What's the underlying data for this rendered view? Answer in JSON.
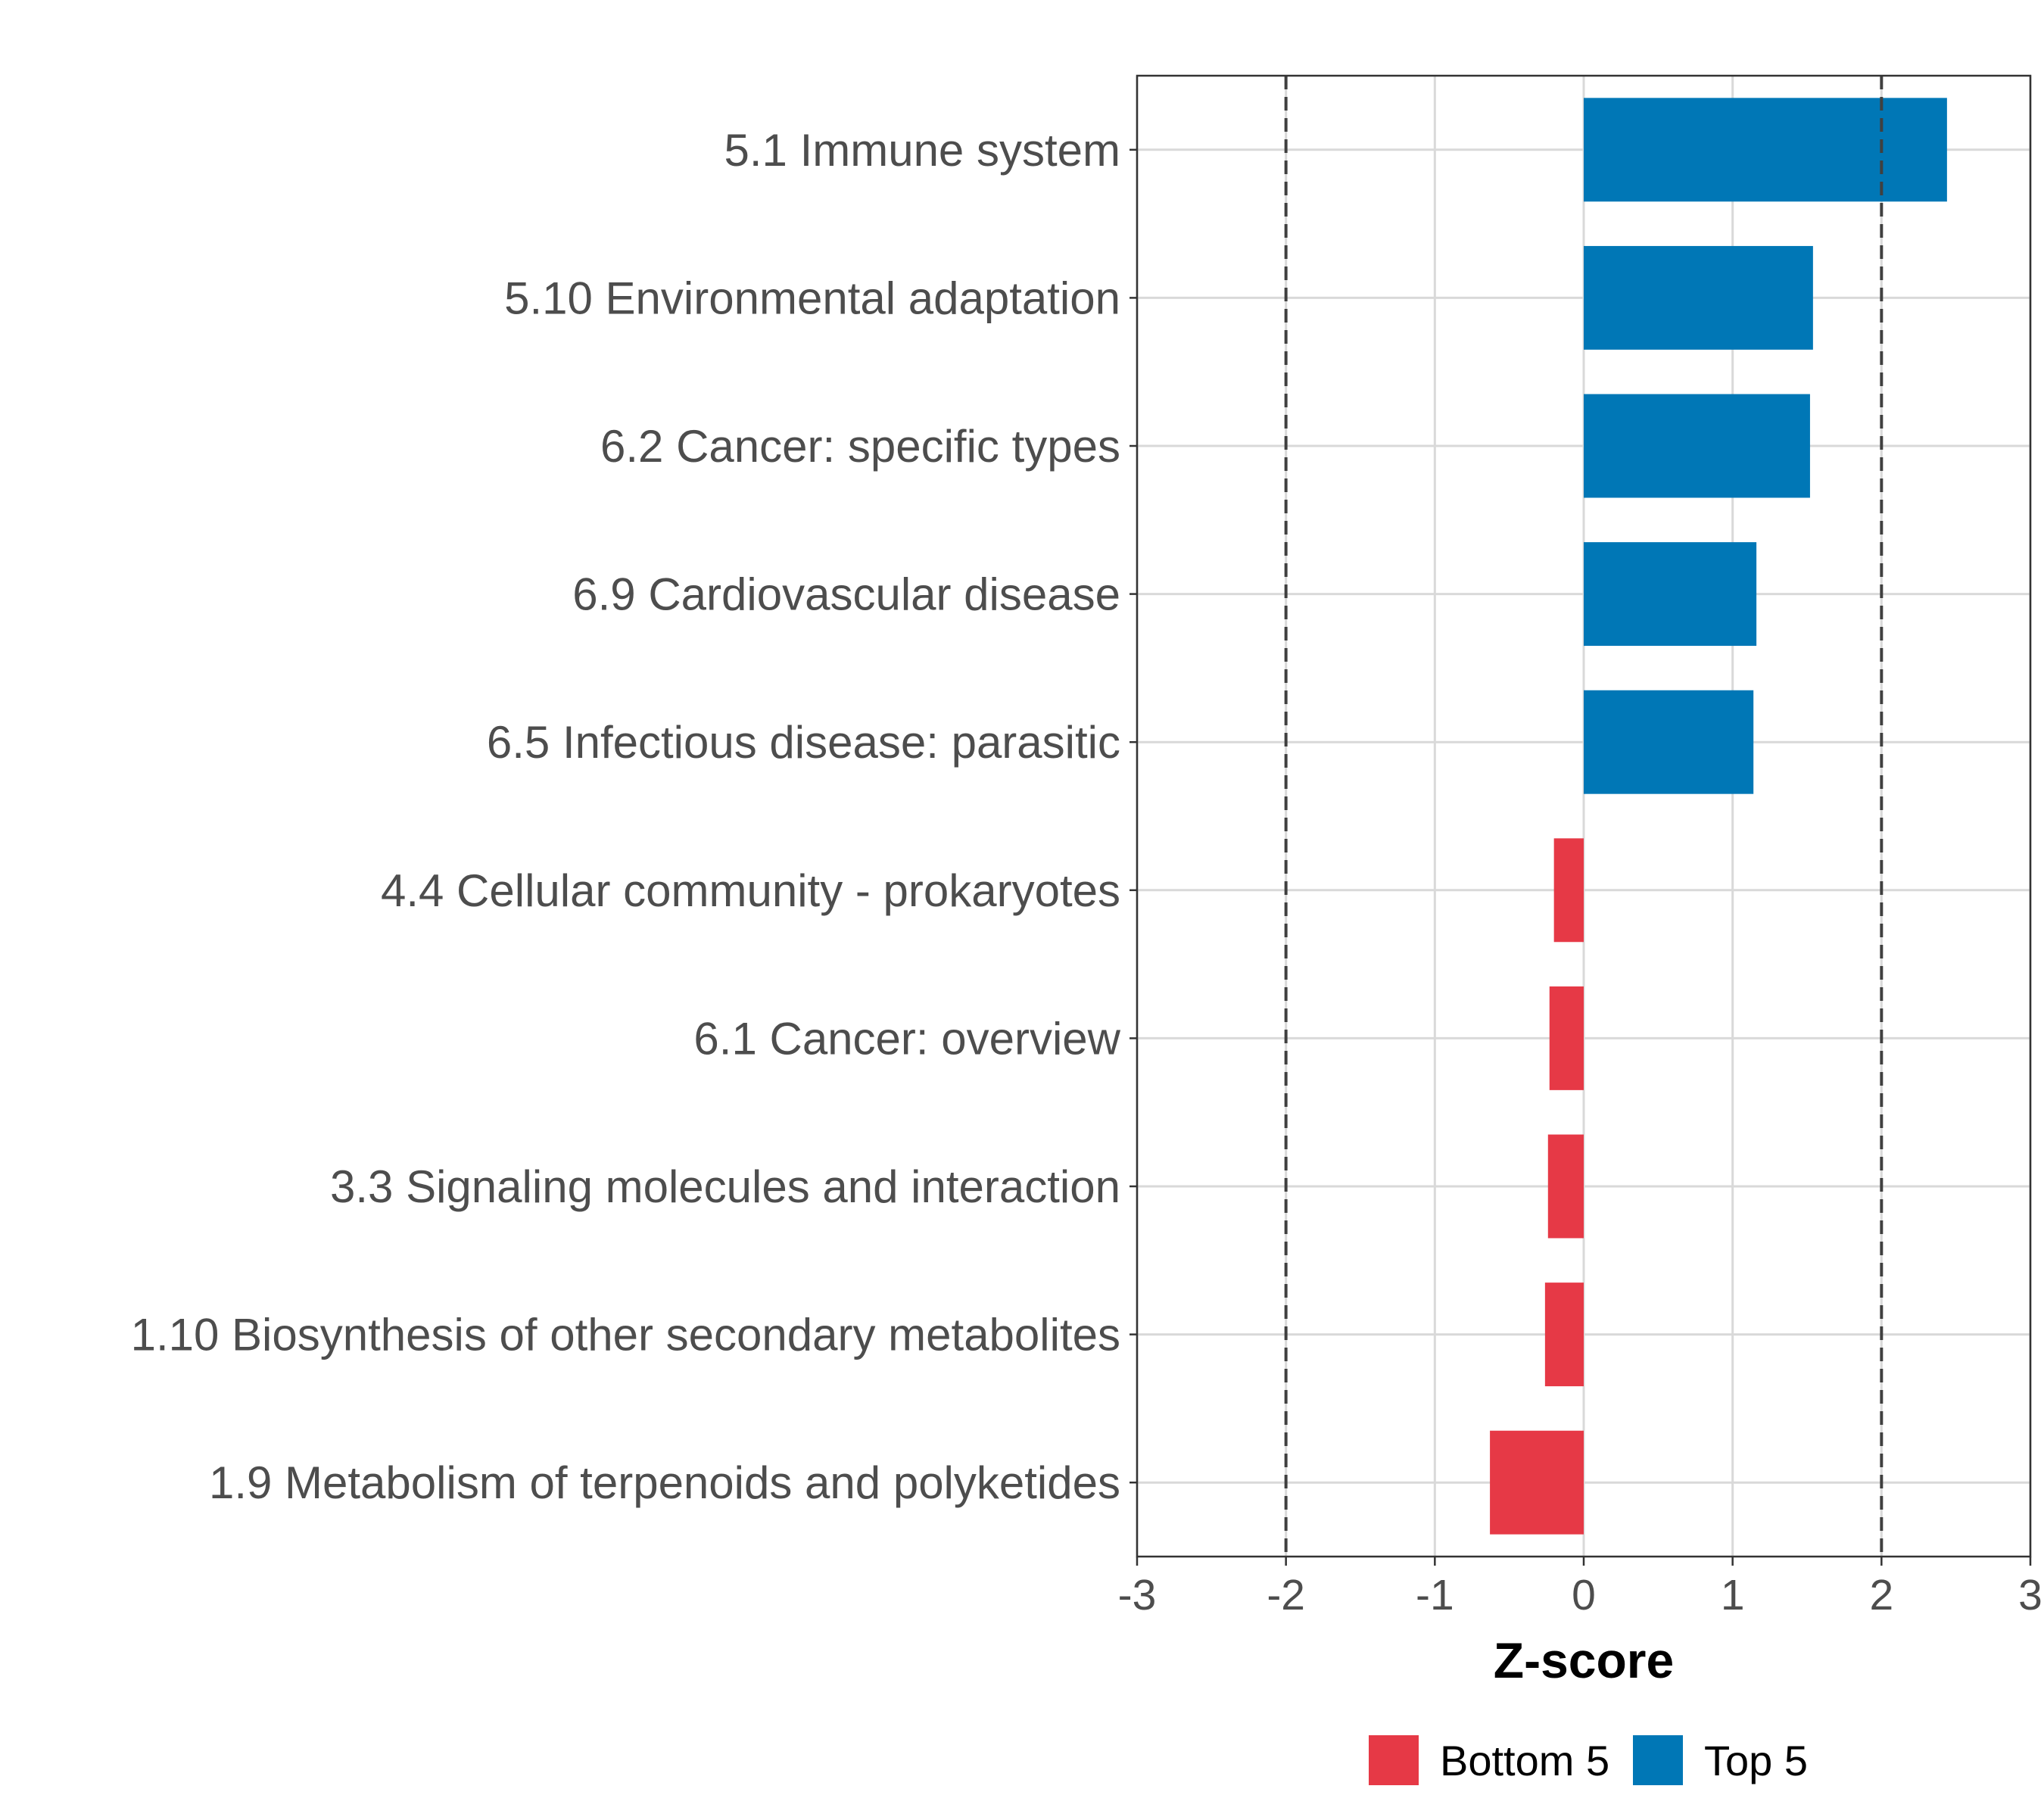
{
  "chart_data": {
    "type": "bar",
    "orientation": "horizontal",
    "categories": [
      "5.1 Immune system",
      "5.10 Environmental adaptation",
      "6.2 Cancer: specific types",
      "6.9 Cardiovascular disease",
      "6.5 Infectious disease: parasitic",
      "4.4 Cellular community - prokaryotes",
      "6.1 Cancer: overview",
      "3.3 Signaling molecules and interaction",
      "1.10 Biosynthesis of other secondary metabolites",
      "1.9 Metabolism of terpenoids and polyketides"
    ],
    "values": [
      2.44,
      1.54,
      1.52,
      1.16,
      1.14,
      -0.2,
      -0.23,
      -0.24,
      -0.26,
      -0.63
    ],
    "groups": [
      "Top 5",
      "Top 5",
      "Top 5",
      "Top 5",
      "Top 5",
      "Bottom 5",
      "Bottom 5",
      "Bottom 5",
      "Bottom 5",
      "Bottom 5"
    ],
    "xlabel": "Z-score",
    "ylabel": "",
    "xlim": [
      -3,
      3
    ],
    "xticks": [
      "-3",
      "-2",
      "-1",
      "0",
      "1",
      "2",
      "3"
    ],
    "reference_lines": [
      -2,
      2
    ],
    "grid": true,
    "legend": {
      "position": "bottom",
      "items": [
        {
          "label": "Bottom 5",
          "color": "#e63946"
        },
        {
          "label": "Top 5",
          "color": "#0077b6"
        }
      ]
    },
    "colors": {
      "Top 5": "#0077b6",
      "Bottom 5": "#e63946"
    }
  }
}
